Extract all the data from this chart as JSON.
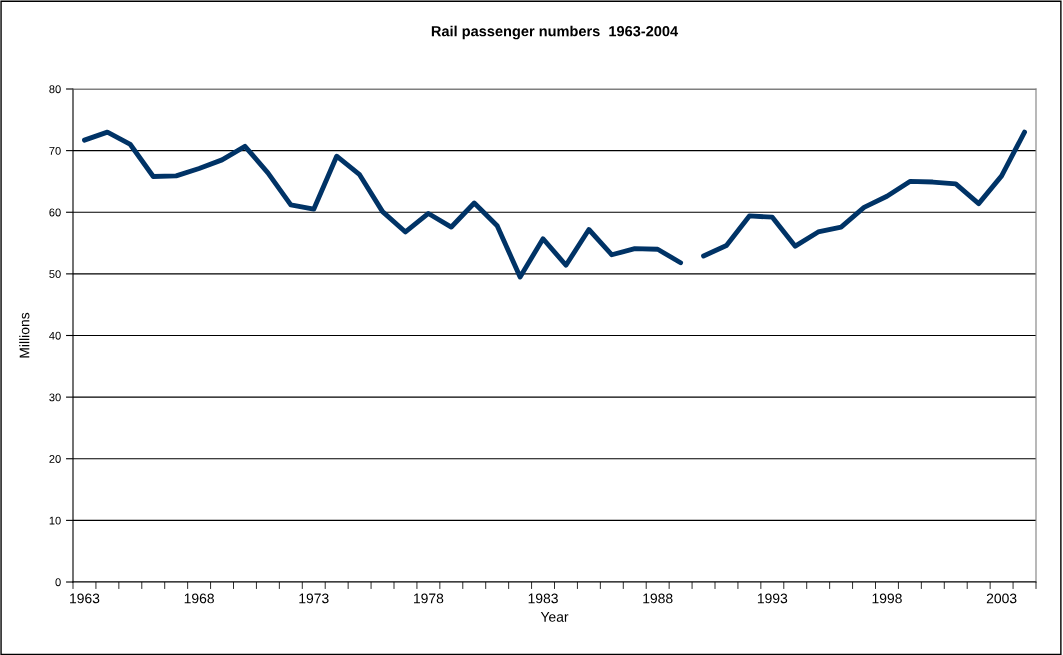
{
  "chart_data": {
    "type": "line",
    "title": "Rail passenger numbers  1963-2004",
    "xlabel": "Year",
    "ylabel": "Millions",
    "categories": [
      "1963",
      null,
      null,
      null,
      null,
      "1968",
      null,
      null,
      null,
      null,
      "1973",
      null,
      null,
      null,
      null,
      "1978",
      null,
      null,
      null,
      null,
      "1983",
      null,
      null,
      null,
      null,
      "1988",
      null,
      null,
      null,
      null,
      "1993",
      null,
      null,
      null,
      null,
      "1998",
      null,
      null,
      null,
      null,
      "2003",
      null
    ],
    "series": [
      {
        "color": "#003366",
        "values": [
          71.7,
          73.0,
          71.0,
          65.8,
          65.9,
          67.1,
          68.5,
          70.7,
          66.4,
          61.2,
          60.5,
          69.1,
          66.1,
          60.1,
          56.8,
          59.8,
          57.6,
          61.5,
          57.8,
          49.5,
          55.7,
          51.4,
          57.2,
          53.1,
          54.1,
          54.0,
          51.8,
          null,
          null,
          null,
          null,
          null,
          null,
          null,
          null,
          null,
          null,
          null,
          null,
          null,
          null,
          null
        ]
      },
      {
        "color": "#003366",
        "values": [
          null,
          null,
          null,
          null,
          null,
          null,
          null,
          null,
          null,
          null,
          null,
          null,
          null,
          null,
          null,
          null,
          null,
          null,
          null,
          null,
          null,
          null,
          null,
          null,
          null,
          null,
          null,
          52.9,
          54.6,
          59.4,
          59.2,
          54.5,
          56.8,
          57.6,
          60.8,
          62.6,
          65.0,
          64.9,
          64.6,
          61.4,
          65.9,
          73.0
        ]
      }
    ],
    "ylim": [
      0,
      80
    ],
    "yticks": [
      0,
      10,
      20,
      30,
      40,
      50,
      60,
      70,
      80
    ],
    "grid": "y",
    "legend": false,
    "marker": "none",
    "line_style": "solid"
  }
}
